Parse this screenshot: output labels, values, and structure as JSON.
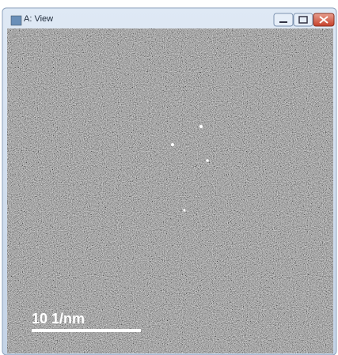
{
  "window": {
    "title": "A: View"
  },
  "image": {
    "scale_bar_label": "10 1/nm"
  }
}
